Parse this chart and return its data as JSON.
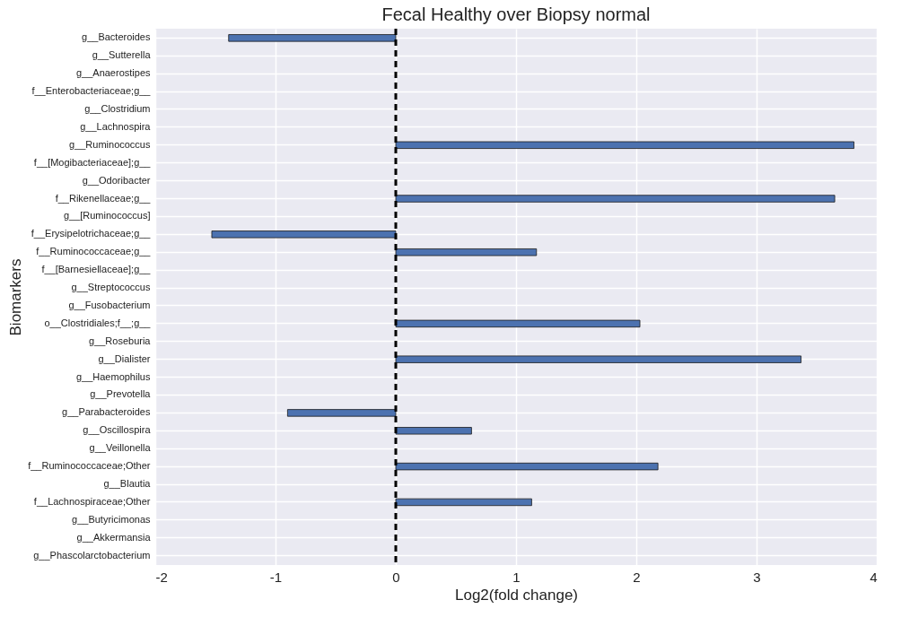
{
  "chart_data": {
    "type": "bar",
    "orientation": "horizontal",
    "title": "Fecal Healthy over Biopsy normal",
    "xlabel": "Log2(fold change)",
    "ylabel": "Biomarkers",
    "categories": [
      "g__Bacteroides",
      "g__Sutterella",
      "g__Anaerostipes",
      "f__Enterobacteriaceae;g__",
      "g__Clostridium",
      "g__Lachnospira",
      "g__Ruminococcus",
      "f__[Mogibacteriaceae];g__",
      "g__Odoribacter",
      "f__Rikenellaceae;g__",
      "g__[Ruminococcus]",
      "f__Erysipelotrichaceae;g__",
      "f__Ruminococcaceae;g__",
      "f__[Barnesiellaceae];g__",
      "g__Streptococcus",
      "g__Fusobacterium",
      "o__Clostridiales;f__;g__",
      "g__Roseburia",
      "g__Dialister",
      "g__Haemophilus",
      "g__Prevotella",
      "g__Parabacteroides",
      "g__Oscillospira",
      "g__Veillonella",
      "f__Ruminococcaceae;Other",
      "g__Blautia",
      "f__Lachnospiraceae;Other",
      "g__Butyricimonas",
      "g__Akkermansia",
      "g__Phascolarctobacterium"
    ],
    "values": [
      -1.39,
      0,
      0,
      0,
      0,
      0,
      3.81,
      0,
      0,
      3.65,
      0,
      -1.53,
      1.17,
      0,
      0,
      0,
      2.03,
      0,
      3.37,
      0,
      0,
      -0.9,
      0.63,
      0,
      2.18,
      0,
      1.13,
      0,
      0,
      0
    ],
    "color": "#4c72b0",
    "xlim": [
      -2,
      4
    ],
    "xticks": [
      -2,
      -1,
      0,
      1,
      2,
      3,
      4
    ],
    "grid": true,
    "ref_lines": [
      {
        "axis": "x",
        "value": 0,
        "color": "#000000",
        "line_style": "dashed"
      }
    ]
  }
}
